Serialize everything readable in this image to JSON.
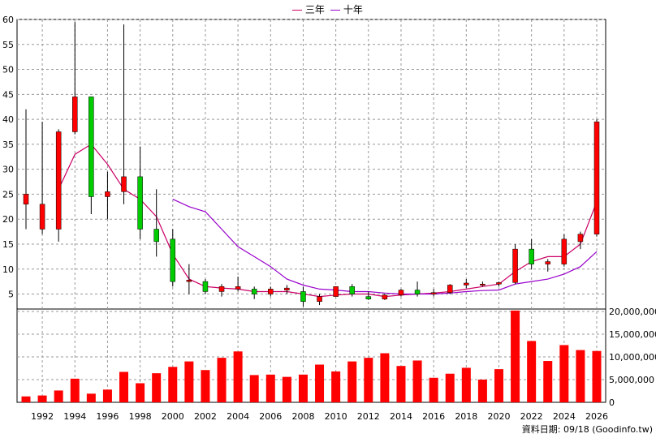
{
  "legend": [
    {
      "label": "三年",
      "color": "#cc0066"
    },
    {
      "label": "十年",
      "color": "#9900cc"
    }
  ],
  "source_note": "資料日期: 09/18  (Goodinfo.tw)",
  "chart_data": [
    {
      "type": "candlestick",
      "ylim": [
        2,
        60
      ],
      "yticks": [
        5,
        10,
        15,
        20,
        25,
        30,
        35,
        40,
        45,
        50,
        55,
        60
      ],
      "up_color": "#ff0000",
      "down_color": "#00cc00",
      "candles": [
        {
          "year": 1991,
          "open": 23,
          "high": 42,
          "low": 18,
          "close": 25
        },
        {
          "year": 1992,
          "open": 18,
          "high": 39.5,
          "low": 17,
          "close": 23
        },
        {
          "year": 1993,
          "open": 18,
          "high": 38,
          "low": 15.5,
          "close": 37.5
        },
        {
          "year": 1994,
          "open": 37.5,
          "high": 59.5,
          "low": 37,
          "close": 44.5
        },
        {
          "year": 1995,
          "open": 44.5,
          "high": 44.5,
          "low": 21,
          "close": 24.5
        },
        {
          "year": 1996,
          "open": 24.5,
          "high": 29.5,
          "low": 20,
          "close": 25.5
        },
        {
          "year": 1997,
          "open": 25.5,
          "high": 59,
          "low": 23,
          "close": 28.5
        },
        {
          "year": 1998,
          "open": 28.5,
          "high": 34.5,
          "low": 16,
          "close": 18
        },
        {
          "year": 1999,
          "open": 18,
          "high": 26,
          "low": 12.5,
          "close": 15.5
        },
        {
          "year": 2000,
          "open": 16,
          "high": 18,
          "low": 6.5,
          "close": 7.5
        },
        {
          "year": 2001,
          "open": 7.5,
          "high": 11,
          "low": 5,
          "close": 7.8
        },
        {
          "year": 2002,
          "open": 7.5,
          "high": 8,
          "low": 5,
          "close": 5.5
        },
        {
          "year": 2003,
          "open": 5.5,
          "high": 7,
          "low": 4.5,
          "close": 6.5
        },
        {
          "year": 2004,
          "open": 6,
          "high": 8.5,
          "low": 5.5,
          "close": 6.5
        },
        {
          "year": 2005,
          "open": 6,
          "high": 6.5,
          "low": 4,
          "close": 5
        },
        {
          "year": 2006,
          "open": 5,
          "high": 6.5,
          "low": 4.5,
          "close": 6
        },
        {
          "year": 2007,
          "open": 5.8,
          "high": 6.8,
          "low": 5,
          "close": 6.2
        },
        {
          "year": 2008,
          "open": 5.5,
          "high": 6.5,
          "low": 2.5,
          "close": 3.5
        },
        {
          "year": 2009,
          "open": 3.5,
          "high": 5,
          "low": 2.8,
          "close": 4.5
        },
        {
          "year": 2010,
          "open": 4.5,
          "high": 6.5,
          "low": 4.5,
          "close": 6.5
        },
        {
          "year": 2011,
          "open": 6.5,
          "high": 7,
          "low": 4.5,
          "close": 5
        },
        {
          "year": 2012,
          "open": 4.5,
          "high": 5.5,
          "low": 3.8,
          "close": 4
        },
        {
          "year": 2013,
          "open": 4,
          "high": 5,
          "low": 3.8,
          "close": 4.8
        },
        {
          "year": 2014,
          "open": 4.8,
          "high": 6,
          "low": 4.5,
          "close": 5.8
        },
        {
          "year": 2015,
          "open": 5.8,
          "high": 7.5,
          "low": 4.5,
          "close": 5
        },
        {
          "year": 2016,
          "open": 5,
          "high": 6,
          "low": 4.5,
          "close": 5.3
        },
        {
          "year": 2017,
          "open": 5.3,
          "high": 7,
          "low": 5,
          "close": 6.8
        },
        {
          "year": 2018,
          "open": 6.8,
          "high": 8,
          "low": 6.2,
          "close": 7.2
        },
        {
          "year": 2019,
          "open": 7,
          "high": 7.5,
          "low": 6.5,
          "close": 7
        },
        {
          "year": 2020,
          "open": 7,
          "high": 7.5,
          "low": 6.5,
          "close": 7.3
        },
        {
          "year": 2021,
          "open": 7.3,
          "high": 15,
          "low": 7,
          "close": 14
        },
        {
          "year": 2022,
          "open": 14,
          "high": 16,
          "low": 10,
          "close": 11
        },
        {
          "year": 2023,
          "open": 11,
          "high": 12,
          "low": 9.5,
          "close": 11.5
        },
        {
          "year": 2024,
          "open": 11,
          "high": 17,
          "low": 10.5,
          "close": 16
        },
        {
          "year": 2025,
          "open": 15.5,
          "high": 17.5,
          "low": 14,
          "close": 17
        },
        {
          "year": 2026,
          "open": 17,
          "high": 40,
          "low": 16.5,
          "close": 39.5
        }
      ],
      "series": [
        {
          "name": "三年",
          "color": "#cc0066",
          "x": [
            1993,
            1994,
            1995,
            1996,
            1997,
            1998,
            1999,
            2000,
            2001,
            2002,
            2003,
            2004,
            2005,
            2006,
            2007,
            2008,
            2009,
            2010,
            2011,
            2012,
            2013,
            2014,
            2015,
            2016,
            2017,
            2018,
            2019,
            2020,
            2021,
            2022,
            2023,
            2024,
            2025,
            2026
          ],
          "y": [
            26,
            33,
            35,
            31,
            26,
            24,
            20.5,
            13,
            8,
            6.5,
            6.2,
            6,
            5.5,
            5.5,
            5.5,
            5,
            4.5,
            4.8,
            5,
            5,
            4.5,
            4.8,
            5,
            5.2,
            5.5,
            6,
            6.5,
            7,
            9.5,
            11.5,
            12.5,
            12.5,
            15,
            23.5
          ]
        },
        {
          "name": "十年",
          "color": "#9900cc",
          "x": [
            2000,
            2001,
            2002,
            2003,
            2004,
            2005,
            2006,
            2007,
            2008,
            2009,
            2010,
            2011,
            2012,
            2013,
            2014,
            2015,
            2016,
            2017,
            2018,
            2019,
            2020,
            2021,
            2022,
            2023,
            2024,
            2025,
            2026
          ],
          "y": [
            24,
            22.5,
            21.5,
            18,
            14.5,
            12.5,
            10.5,
            8,
            6.8,
            6,
            5.8,
            5.5,
            5.5,
            5.2,
            5,
            5,
            5,
            5.2,
            5.5,
            5.7,
            5.8,
            7,
            7.5,
            8,
            9,
            10.5,
            13.5
          ]
        }
      ]
    },
    {
      "type": "bar",
      "ylim": [
        0,
        20000000
      ],
      "ytick_labels": [
        "0",
        "5,000,000",
        "10,000,000",
        "15,000,000",
        "20,000,000"
      ],
      "yticks": [
        0,
        5000000,
        10000000,
        15000000,
        20000000
      ],
      "xtick_labels": [
        "1992",
        "1994",
        "1996",
        "1998",
        "2000",
        "2002",
        "2004",
        "2006",
        "2008",
        "2010",
        "2012",
        "2014",
        "2016",
        "2018",
        "2020",
        "2022",
        "2024",
        "2026"
      ],
      "color": "#ff0000",
      "categories": [
        1991,
        1992,
        1993,
        1994,
        1995,
        1996,
        1997,
        1998,
        1999,
        2000,
        2001,
        2002,
        2003,
        2004,
        2005,
        2006,
        2007,
        2008,
        2009,
        2010,
        2011,
        2012,
        2013,
        2014,
        2015,
        2016,
        2017,
        2018,
        2019,
        2020,
        2021,
        2022,
        2023,
        2024,
        2025,
        2026
      ],
      "values": [
        1300000,
        1500000,
        2600000,
        5200000,
        1900000,
        2800000,
        6700000,
        4200000,
        6400000,
        7800000,
        9000000,
        7100000,
        9800000,
        11200000,
        6000000,
        6100000,
        5600000,
        6100000,
        8300000,
        6800000,
        9000000,
        9800000,
        10800000,
        8000000,
        9200000,
        5400000,
        6300000,
        7600000,
        5000000,
        7300000,
        20200000,
        13500000,
        9100000,
        12600000,
        11500000,
        11300000
      ]
    }
  ]
}
